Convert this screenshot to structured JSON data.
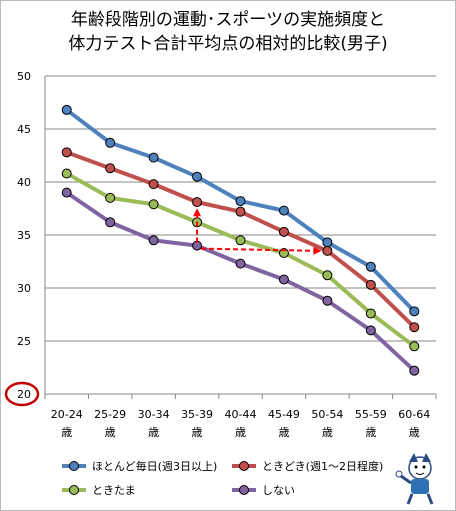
{
  "chart_data": {
    "type": "line",
    "title": "年齢段階別の運動･スポーツの実施頻度と\n体力テスト合計平均点の相対的比較(男子)",
    "categories": [
      [
        "20-24",
        "歳"
      ],
      [
        "25-29",
        "歳"
      ],
      [
        "30-34",
        "歳"
      ],
      [
        "35-39",
        "歳"
      ],
      [
        "40-44",
        "歳"
      ],
      [
        "45-49",
        "歳"
      ],
      [
        "50-54",
        "歳"
      ],
      [
        "55-59",
        "歳"
      ],
      [
        "60-64",
        "歳"
      ]
    ],
    "yticks": [
      "50",
      "45",
      "40",
      "35",
      "30",
      "25",
      "20"
    ],
    "ylim": [
      20,
      50
    ],
    "grid": true,
    "legend_position": "bottom",
    "series": [
      {
        "name": "ほとんど毎日(週3日以上)",
        "color": "#4F81BD",
        "values": [
          46.8,
          43.7,
          42.3,
          40.5,
          38.2,
          37.3,
          34.3,
          32.0,
          27.8
        ]
      },
      {
        "name": "ときどき(週1～2日程度)",
        "color": "#C0504D",
        "values": [
          42.8,
          41.3,
          39.8,
          38.1,
          37.2,
          35.3,
          33.5,
          30.3,
          26.3
        ]
      },
      {
        "name": "ときたま",
        "color": "#9BBB59",
        "values": [
          40.8,
          38.5,
          37.9,
          36.2,
          34.5,
          33.3,
          31.2,
          27.6,
          24.5
        ]
      },
      {
        "name": "しない",
        "color": "#8064A2",
        "values": [
          39.0,
          36.2,
          34.5,
          34.0,
          32.3,
          30.8,
          28.8,
          26.0,
          22.2
        ]
      }
    ],
    "annotations": {
      "axis_min_circle_color": "#C00000",
      "arrow_color": "#FF0000"
    }
  }
}
